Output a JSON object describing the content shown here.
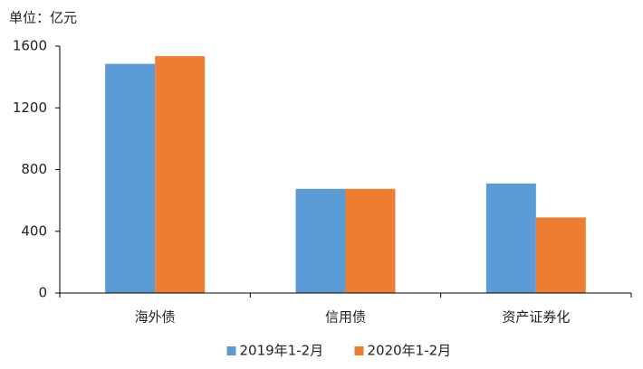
{
  "chart_data": {
    "type": "bar",
    "y_label": "单位：亿元",
    "categories": [
      "海外债",
      "信用债",
      "资产证券化"
    ],
    "series": [
      {
        "name": "2019年1-2月",
        "color": "#5b9bd5",
        "values": [
          1485,
          675,
          710
        ]
      },
      {
        "name": "2020年1-2月",
        "color": "#ed7d31",
        "values": [
          1535,
          675,
          490
        ]
      }
    ],
    "ylim": [
      0,
      1600
    ],
    "yticks": [
      0,
      400,
      800,
      1200,
      1600
    ],
    "grid": false,
    "legend": "bottom"
  }
}
